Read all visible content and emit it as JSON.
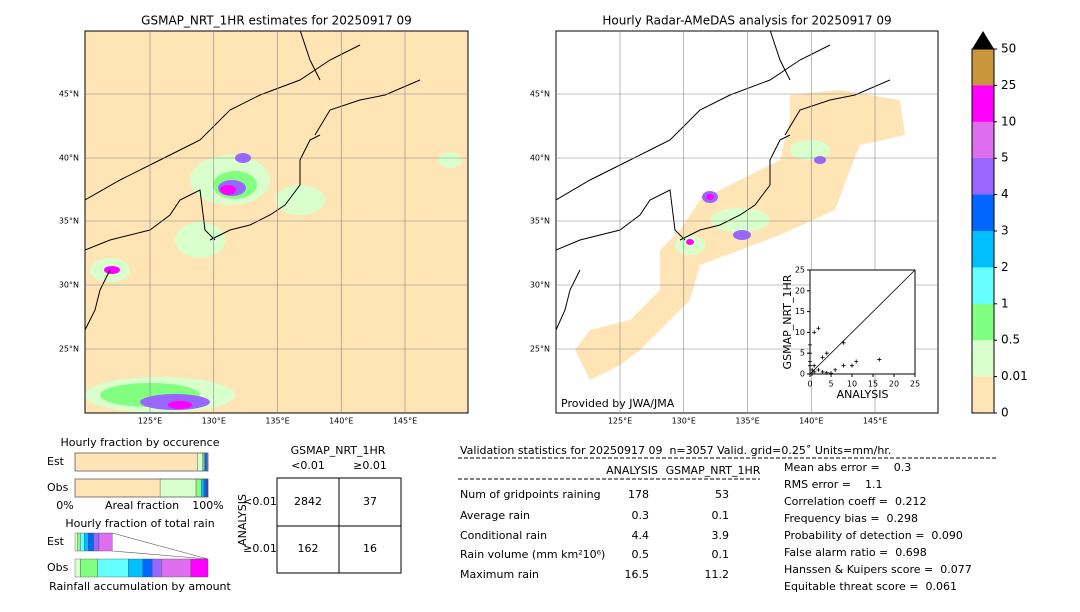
{
  "left_map": {
    "title": "GSMAP_NRT_1HR estimates for 20250917 09",
    "lat_labels": [
      "45°N",
      "40°N",
      "35°N",
      "30°N",
      "25°N"
    ],
    "lon_labels": [
      "125°E",
      "130°E",
      "135°E",
      "140°E",
      "145°E"
    ]
  },
  "right_map": {
    "title": "Hourly Radar-AMeDAS analysis for 20250917 09",
    "lat_labels": [
      "45°N",
      "40°N",
      "35°N",
      "30°N",
      "25°N"
    ],
    "lon_labels": [
      "125°E",
      "130°E",
      "135°E",
      "140°E",
      "145°E"
    ],
    "credit": "Provided by JWA/JMA"
  },
  "inset_scatter": {
    "xlabel": "ANALYSIS",
    "ylabel": "GSMAP_NRT_1HR",
    "xlim": [
      0,
      25
    ],
    "ylim": [
      0,
      25
    ],
    "xticks": [
      0,
      5,
      10,
      15,
      20,
      25
    ],
    "yticks": [
      0,
      5,
      10,
      15,
      20,
      25
    ],
    "x": [
      0,
      0,
      0,
      0,
      0.5,
      1,
      1,
      2,
      3,
      4,
      5,
      6,
      8,
      8,
      10,
      11,
      16.5,
      1,
      2,
      3,
      4,
      0.5
    ],
    "y": [
      7,
      5,
      3,
      2,
      1,
      0.5,
      2,
      1,
      0.5,
      0.3,
      0.2,
      1,
      2,
      7.5,
      2,
      3,
      3.5,
      10,
      11,
      4,
      5,
      0
    ]
  },
  "colorbar": {
    "labels": [
      "50",
      "25",
      "10",
      "5",
      "4",
      "3",
      "2",
      "1",
      "0.5",
      "0.01",
      "0"
    ],
    "colors": [
      "#c8963c",
      "#ff00ff",
      "#dd6ef0",
      "#9966ff",
      "#0066ff",
      "#00bfff",
      "#66ffff",
      "#80ff80",
      "#d9ffcc",
      "#ffe4b5"
    ]
  },
  "fraction_occurrence": {
    "title": "Hourly fraction by occurence",
    "rows": [
      "Est",
      "Obs"
    ],
    "axis_left": "0%",
    "axis_mid": "Areal fraction",
    "axis_right": "100%",
    "est": [
      {
        "value": 0.92,
        "color": "#ffe4b5"
      },
      {
        "value": 0.04,
        "color": "#d9ffcc"
      },
      {
        "value": 0.01,
        "color": "#80ff80"
      },
      {
        "value": 0.01,
        "color": "#00bfff"
      },
      {
        "value": 0.01,
        "color": "#0066ff"
      },
      {
        "value": 0.01,
        "color": "#9966ff"
      }
    ],
    "obs": [
      {
        "value": 0.64,
        "color": "#ffe4b5"
      },
      {
        "value": 0.27,
        "color": "#d9ffcc"
      },
      {
        "value": 0.04,
        "color": "#80ff80"
      },
      {
        "value": 0.02,
        "color": "#00bfff"
      },
      {
        "value": 0.02,
        "color": "#0066ff"
      },
      {
        "value": 0.01,
        "color": "#3333aa"
      }
    ]
  },
  "fraction_total": {
    "title": "Hourly fraction of total rain",
    "rows": [
      "Est",
      "Obs"
    ],
    "footer": "Rainfall accumulation by amount",
    "est": [
      {
        "value": 0.02,
        "color": "#d9ffcc"
      },
      {
        "value": 0.02,
        "color": "#80ff80"
      },
      {
        "value": 0.03,
        "color": "#66ffff"
      },
      {
        "value": 0.03,
        "color": "#00bfff"
      },
      {
        "value": 0.04,
        "color": "#0066ff"
      },
      {
        "value": 0.04,
        "color": "#9966ff"
      },
      {
        "value": 0.1,
        "color": "#dd6ef0"
      }
    ],
    "obs": [
      {
        "value": 0.04,
        "color": "#d9ffcc"
      },
      {
        "value": 0.13,
        "color": "#80ff80"
      },
      {
        "value": 0.23,
        "color": "#66ffff"
      },
      {
        "value": 0.11,
        "color": "#00bfff"
      },
      {
        "value": 0.07,
        "color": "#0066ff"
      },
      {
        "value": 0.07,
        "color": "#9966ff"
      },
      {
        "value": 0.22,
        "color": "#dd6ef0"
      },
      {
        "value": 0.13,
        "color": "#ff00ff"
      }
    ]
  },
  "contingency": {
    "title": "GSMAP_NRT_1HR",
    "columns": [
      "<0.01",
      "≥0.01"
    ],
    "side": "ANALYSIS",
    "rows": [
      "<0.01",
      "≥0.01"
    ],
    "cells": [
      [
        2842,
        37
      ],
      [
        162,
        16
      ]
    ]
  },
  "validation": {
    "header": "Validation statistics for 20250917 09  n=3057 Valid. grid=0.25˚ Units=mm/hr.",
    "columns": [
      "ANALYSIS",
      "GSMAP_NRT_1HR"
    ],
    "rows": [
      {
        "label": "Num of gridpoints raining",
        "values": [
          178,
          53
        ]
      },
      {
        "label": "Average rain",
        "values": [
          0.3,
          0.1
        ]
      },
      {
        "label": "Conditional rain",
        "values": [
          4.4,
          3.9
        ]
      },
      {
        "label": "Rain volume (mm km²10⁶)",
        "values": [
          0.5,
          0.1
        ]
      },
      {
        "label": "Maximum rain",
        "values": [
          16.5,
          11.2
        ]
      }
    ],
    "scores": [
      "Mean abs error =    0.3",
      "RMS error =    1.1",
      "Correlation coeff =  0.212",
      "Frequency bias =  0.298",
      "Probability of detection =  0.090",
      "False alarm ratio =  0.698",
      "Hanssen & Kuipers score =  0.077",
      "Equitable threat score =  0.061"
    ]
  }
}
